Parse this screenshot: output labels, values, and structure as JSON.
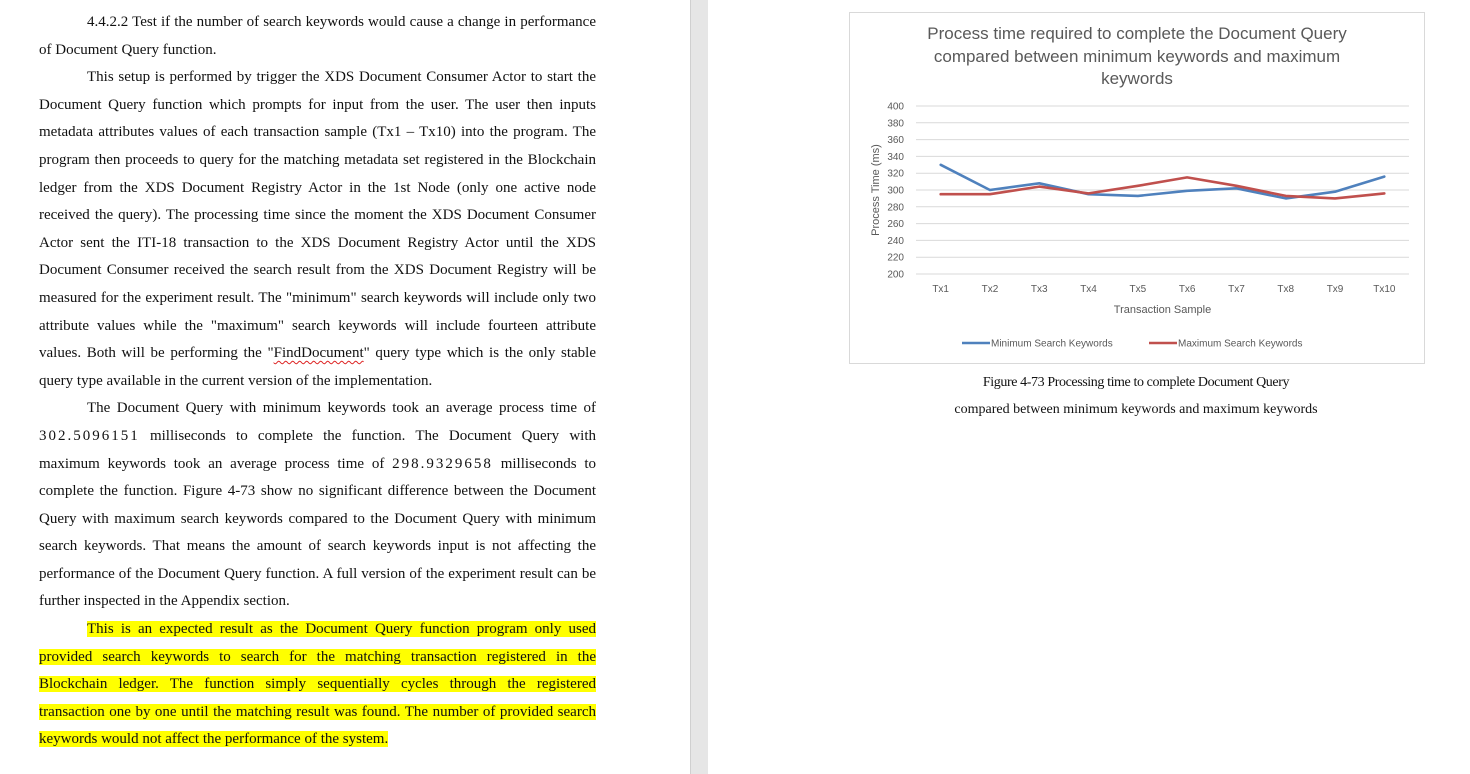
{
  "document": {
    "heading": "4.4.2.2 Test if the number of search keywords would cause a change in performance of Document Query function.",
    "para1": "This setup is performed by trigger the XDS Document Consumer Actor to start the Document Query function which prompts for input from the user. The user then inputs metadata attributes values of each transaction sample (Tx1 – Tx10) into the program. The program then proceeds to query for the matching metadata set registered in the Blockchain ledger from the XDS Document Registry Actor in the 1st Node (only one active node received the query). The processing time since the moment the XDS Document Consumer Actor sent the ITI-18 transaction to the XDS Document Registry Actor until the XDS Document Consumer received the search result from the XDS Document Registry will be measured for the experiment result. The \"minimum\" search keywords will include only two attribute values while the \"maximum\" search keywords will include fourteen attribute values. Both will be performing the \"",
    "para1_flagged": "FindDocument",
    "para1_end": "\" query type which is the only stable query type available in the current version of the implementation.",
    "para2_a": "The Document Query with minimum keywords took an average process time of ",
    "para2_num1": "302.5096151",
    "para2_b": " milliseconds to complete the function. The Document Query with maximum keywords took an average process time of ",
    "para2_num2": "298.9329658",
    "para2_c": " milliseconds to complete the function. Figure 4-73 show no significant difference between the Document Query with maximum search keywords compared to the Document Query with minimum search keywords. That means the amount of search keywords input is not affecting the performance of the Document Query function. A full version of the experiment result can be further inspected in the Appendix section.",
    "para3": "This is an expected result as the Document Query function program only used provided search keywords to search for the matching transaction registered in the Blockchain ledger. The function simply sequentially cycles through the registered transaction one by one until the matching result was found. The number of provided search keywords would not affect the performance of the system."
  },
  "figure": {
    "caption_line1": "Figure 4-73 Processing time to complete Document Query",
    "caption_line2": "compared between minimum keywords and maximum keywords"
  },
  "chart_data": {
    "type": "line",
    "title_lines": [
      "Process time required to complete the Document Query",
      "compared between minimum keywords and maximum",
      "keywords"
    ],
    "xlabel": "Transaction Sample",
    "ylabel": "Process Time (ms)",
    "ylim": [
      200,
      400
    ],
    "yticks": [
      200,
      220,
      240,
      260,
      280,
      300,
      320,
      340,
      360,
      380,
      400
    ],
    "grid": true,
    "legend_position": "bottom",
    "categories": [
      "Tx1",
      "Tx2",
      "Tx3",
      "Tx4",
      "Tx5",
      "Tx6",
      "Tx7",
      "Tx8",
      "Tx9",
      "Tx10"
    ],
    "series": [
      {
        "name": "Minimum Search Keywords",
        "color": "#4f81bd",
        "values": [
          330,
          300,
          308,
          295,
          293,
          299,
          302,
          290,
          298,
          316
        ]
      },
      {
        "name": "Maximum Search Keywords",
        "color": "#c0504d",
        "values": [
          295,
          295,
          304,
          296,
          305,
          315,
          305,
          293,
          290,
          296
        ]
      }
    ]
  }
}
